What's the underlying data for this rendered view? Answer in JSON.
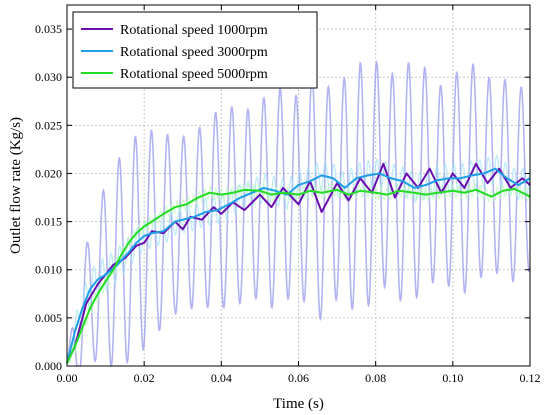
{
  "chart_data": {
    "type": "line",
    "title": "",
    "xlabel": "Time (s)",
    "ylabel": "Outlet flow rate (Kg/s)",
    "xlim": [
      0,
      0.12
    ],
    "ylim": [
      0,
      0.0375
    ],
    "x_ticks": [
      "0.00",
      "0.02",
      "0.04",
      "0.06",
      "0.08",
      "0.10",
      "0.12"
    ],
    "y_ticks": [
      "0.000",
      "0.005",
      "0.010",
      "0.015",
      "0.020",
      "0.025",
      "0.030",
      "0.035"
    ],
    "x_tick_values": [
      0,
      0.02,
      0.04,
      0.06,
      0.08,
      0.1,
      0.12
    ],
    "y_tick_values": [
      0,
      0.005,
      0.01,
      0.015,
      0.02,
      0.025,
      0.03,
      0.035
    ],
    "grid": true,
    "legend_position": "top-left",
    "series": [
      {
        "name": "Rotational speed 1000rpm",
        "color": "#6a0dad",
        "band_color": "#9999ee",
        "x": [
          0.0,
          0.002,
          0.005,
          0.008,
          0.01,
          0.012,
          0.015,
          0.018,
          0.02,
          0.022,
          0.025,
          0.028,
          0.03,
          0.032,
          0.035,
          0.038,
          0.04,
          0.043,
          0.046,
          0.05,
          0.053,
          0.056,
          0.06,
          0.063,
          0.066,
          0.07,
          0.073,
          0.076,
          0.079,
          0.082,
          0.085,
          0.088,
          0.091,
          0.094,
          0.097,
          0.1,
          0.103,
          0.106,
          0.109,
          0.112,
          0.115,
          0.118,
          0.12
        ],
        "values": [
          0.0003,
          0.002,
          0.0065,
          0.0085,
          0.0095,
          0.0105,
          0.0112,
          0.0125,
          0.0128,
          0.014,
          0.0138,
          0.015,
          0.0142,
          0.0155,
          0.0152,
          0.0165,
          0.0158,
          0.017,
          0.0162,
          0.0178,
          0.0165,
          0.0185,
          0.0168,
          0.0192,
          0.016,
          0.019,
          0.0172,
          0.0195,
          0.018,
          0.021,
          0.0175,
          0.02,
          0.0185,
          0.0205,
          0.018,
          0.02,
          0.0185,
          0.021,
          0.019,
          0.0205,
          0.0185,
          0.0195,
          0.0188
        ],
        "band_amplitude": [
          0.0003,
          0.004,
          0.006,
          0.008,
          0.0095,
          0.0105,
          0.011,
          0.0115,
          0.011,
          0.0105,
          0.01,
          0.0095,
          0.0095,
          0.0095,
          0.0095,
          0.01,
          0.01,
          0.01,
          0.01,
          0.0105,
          0.0105,
          0.011,
          0.011,
          0.0115,
          0.0115,
          0.012,
          0.012,
          0.012,
          0.0122,
          0.0125,
          0.012,
          0.0118,
          0.0115,
          0.0112,
          0.011,
          0.011,
          0.011,
          0.011,
          0.0108,
          0.0105,
          0.01,
          0.0095,
          0.009
        ]
      },
      {
        "name": "Rotational speed 3000rpm",
        "color": "#1e9ee6",
        "band_color": "#9fe3f5",
        "x": [
          0.0,
          0.002,
          0.004,
          0.006,
          0.008,
          0.01,
          0.013,
          0.016,
          0.018,
          0.02,
          0.022,
          0.025,
          0.028,
          0.03,
          0.033,
          0.036,
          0.039,
          0.042,
          0.045,
          0.048,
          0.051,
          0.054,
          0.057,
          0.06,
          0.063,
          0.066,
          0.069,
          0.072,
          0.075,
          0.078,
          0.081,
          0.084,
          0.087,
          0.09,
          0.093,
          0.096,
          0.099,
          0.102,
          0.105,
          0.108,
          0.111,
          0.114,
          0.117,
          0.12
        ],
        "values": [
          0.0003,
          0.0035,
          0.006,
          0.008,
          0.009,
          0.0095,
          0.0105,
          0.0118,
          0.0128,
          0.0135,
          0.0138,
          0.014,
          0.015,
          0.0152,
          0.0155,
          0.016,
          0.0162,
          0.0168,
          0.0175,
          0.018,
          0.0185,
          0.0182,
          0.0178,
          0.0188,
          0.0192,
          0.0198,
          0.0195,
          0.0185,
          0.0195,
          0.0198,
          0.02,
          0.0195,
          0.0192,
          0.0185,
          0.0188,
          0.0193,
          0.0195,
          0.0195,
          0.0198,
          0.02,
          0.0205,
          0.0195,
          0.0188,
          0.0195
        ],
        "band_amplitude": [
          0.0003,
          0.0015,
          0.0018,
          0.0018,
          0.0018,
          0.0018,
          0.0017,
          0.0016,
          0.0015,
          0.0015,
          0.0015,
          0.0014,
          0.0014,
          0.0014,
          0.0014,
          0.0014,
          0.0014,
          0.0014,
          0.0014,
          0.0014,
          0.0015,
          0.0015,
          0.0015,
          0.0015,
          0.0015,
          0.0015,
          0.0015,
          0.0015,
          0.0015,
          0.0015,
          0.0015,
          0.0015,
          0.0015,
          0.0015,
          0.0015,
          0.0015,
          0.0015,
          0.0015,
          0.0015,
          0.0015,
          0.0015,
          0.0015,
          0.0015,
          0.0015
        ]
      },
      {
        "name": "Rotational speed 5000rpm",
        "color": "#22dd22",
        "band_color": "#bff7bf",
        "x": [
          0.0,
          0.002,
          0.004,
          0.006,
          0.008,
          0.01,
          0.012,
          0.014,
          0.016,
          0.018,
          0.02,
          0.022,
          0.025,
          0.028,
          0.031,
          0.034,
          0.037,
          0.04,
          0.043,
          0.046,
          0.05,
          0.053,
          0.056,
          0.06,
          0.063,
          0.066,
          0.07,
          0.073,
          0.076,
          0.08,
          0.083,
          0.086,
          0.09,
          0.093,
          0.096,
          0.1,
          0.103,
          0.106,
          0.11,
          0.113,
          0.116,
          0.12
        ],
        "values": [
          0.0003,
          0.002,
          0.004,
          0.006,
          0.0075,
          0.0088,
          0.01,
          0.0115,
          0.0128,
          0.0138,
          0.0145,
          0.015,
          0.0158,
          0.0165,
          0.0168,
          0.0175,
          0.018,
          0.0178,
          0.018,
          0.0183,
          0.0182,
          0.0178,
          0.018,
          0.0178,
          0.0182,
          0.018,
          0.0183,
          0.0178,
          0.0182,
          0.018,
          0.0178,
          0.0182,
          0.018,
          0.0178,
          0.018,
          0.0182,
          0.018,
          0.0183,
          0.0176,
          0.0182,
          0.0184,
          0.0176
        ],
        "band_amplitude": [
          0.0003,
          0.0008,
          0.0008,
          0.0008,
          0.0008,
          0.0008,
          0.0007,
          0.0007,
          0.0006,
          0.0006,
          0.0006,
          0.0006,
          0.0006,
          0.0006,
          0.0006,
          0.0006,
          0.0006,
          0.0006,
          0.0006,
          0.0006,
          0.0006,
          0.0006,
          0.0006,
          0.0006,
          0.0006,
          0.0006,
          0.0006,
          0.0006,
          0.0006,
          0.0006,
          0.0006,
          0.0006,
          0.0006,
          0.0006,
          0.0006,
          0.0006,
          0.0006,
          0.0006,
          0.0006,
          0.0006,
          0.0006,
          0.0006
        ]
      }
    ]
  }
}
